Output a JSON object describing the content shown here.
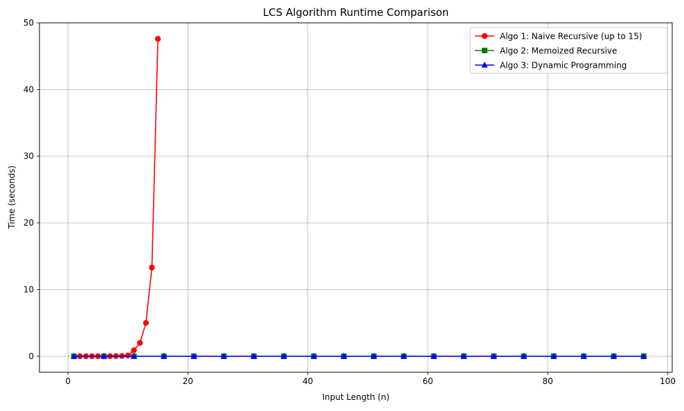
{
  "chart_data": {
    "type": "line",
    "title": "LCS Algorithm Runtime Comparison",
    "xlabel": "Input Length (n)",
    "ylabel": "Time (seconds)",
    "xlim": [
      -4.75,
      100.75
    ],
    "ylim": [
      -2.4,
      50
    ],
    "xticks": [
      0,
      20,
      40,
      60,
      80,
      100
    ],
    "yticks": [
      0,
      10,
      20,
      30,
      40,
      50
    ],
    "xtick_labels": [
      "0",
      "20",
      "40",
      "60",
      "80",
      "100"
    ],
    "ytick_labels": [
      "0",
      "10",
      "20",
      "30",
      "40",
      "50"
    ],
    "grid": true,
    "legend_position": "top-right",
    "series": [
      {
        "name": "Algo 1: Naive Recursive (up to 15)",
        "color": "#ff0000",
        "marker": "circle",
        "x": [
          1,
          2,
          3,
          4,
          5,
          6,
          7,
          8,
          9,
          10,
          11,
          12,
          13,
          14,
          15
        ],
        "y": [
          0,
          0,
          0,
          0,
          0,
          0.01,
          0.01,
          0.02,
          0.04,
          0.12,
          0.9,
          2.0,
          5.0,
          13.3,
          47.6
        ]
      },
      {
        "name": "Algo 2: Memoized Recursive",
        "color": "#008000",
        "marker": "square",
        "x": [
          1,
          6,
          11,
          16,
          21,
          26,
          31,
          36,
          41,
          46,
          51,
          56,
          61,
          66,
          71,
          76,
          81,
          86,
          91,
          96
        ],
        "y": [
          0,
          0,
          0,
          0,
          0,
          0,
          0,
          0,
          0,
          0,
          0,
          0,
          0,
          0,
          0,
          0,
          0,
          0,
          0,
          0
        ]
      },
      {
        "name": "Algo 3: Dynamic Programming",
        "color": "#0000ff",
        "marker": "triangle",
        "x": [
          1,
          6,
          11,
          16,
          21,
          26,
          31,
          36,
          41,
          46,
          51,
          56,
          61,
          66,
          71,
          76,
          81,
          86,
          91,
          96
        ],
        "y": [
          0,
          0,
          0,
          0,
          0,
          0,
          0,
          0,
          0,
          0,
          0,
          0,
          0,
          0,
          0,
          0,
          0,
          0,
          0,
          0
        ]
      }
    ]
  }
}
